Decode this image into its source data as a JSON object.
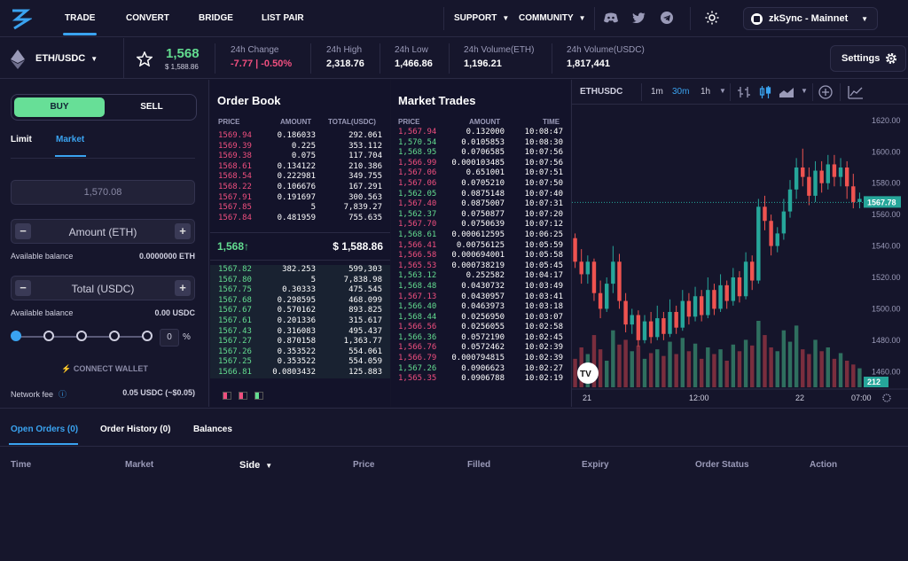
{
  "nav": {
    "items": [
      "TRADE",
      "CONVERT",
      "BRIDGE",
      "LIST PAIR"
    ],
    "support": "SUPPORT",
    "community": "COMMUNITY",
    "network": "zkSync - Mainnet"
  },
  "icons": {
    "discord": "discord-icon",
    "twitter": "twitter-icon",
    "telegram": "telegram-icon",
    "theme": "sun-icon"
  },
  "market": {
    "pair": "ETH/USDC",
    "price": "1,568",
    "price_usd": "$ 1,588.86",
    "stats": [
      {
        "label": "24h Change",
        "value": "-7.77 | -0.50%"
      },
      {
        "label": "24h High",
        "value": "2,318.76"
      },
      {
        "label": "24h Low",
        "value": "1,466.86"
      },
      {
        "label": "24h Volume(ETH)",
        "value": "1,196.21"
      },
      {
        "label": "24h Volume(USDC)",
        "value": "1,817,441"
      }
    ],
    "settings": "Settings"
  },
  "order_form": {
    "buy": "BUY",
    "sell": "SELL",
    "tabs": [
      "Limit",
      "Market"
    ],
    "price_placeholder": "1,570.08",
    "amount_label": "Amount (ETH)",
    "total_label": "Total (USDC)",
    "available_label": "Available balance",
    "available_eth": "0.0000000 ETH",
    "available_usdc": "0.00 USDC",
    "pct": "0",
    "pct_sign": "%",
    "connect": "CONNECT WALLET",
    "network_fee_label": "Network fee",
    "network_fee": "0.05 USDC (~$0.05)"
  },
  "order_book": {
    "title": "Order Book",
    "headers": [
      "PRICE",
      "AMOUNT",
      "TOTAL(USDC)"
    ],
    "asks": [
      [
        "1569.94",
        "0.186033",
        "292.061"
      ],
      [
        "1569.39",
        "0.225",
        "353.112"
      ],
      [
        "1569.38",
        "0.075",
        "117.704"
      ],
      [
        "1568.61",
        "0.134122",
        "210.386"
      ],
      [
        "1568.54",
        "0.222981",
        "349.755"
      ],
      [
        "1568.22",
        "0.106676",
        "167.291"
      ],
      [
        "1567.91",
        "0.191697",
        "300.563"
      ],
      [
        "1567.85",
        "5",
        "7,839.27"
      ],
      [
        "1567.84",
        "0.481959",
        "755.635"
      ]
    ],
    "mid": "1,568↑",
    "mid_usd": "$ 1,588.86",
    "bids": [
      [
        "1567.82",
        "382.253",
        "599,303"
      ],
      [
        "1567.80",
        "5",
        "7,838.98"
      ],
      [
        "1567.75",
        "0.30333",
        "475.545"
      ],
      [
        "1567.68",
        "0.298595",
        "468.099"
      ],
      [
        "1567.67",
        "0.570162",
        "893.825"
      ],
      [
        "1567.61",
        "0.201336",
        "315.617"
      ],
      [
        "1567.43",
        "0.316083",
        "495.437"
      ],
      [
        "1567.27",
        "0.870158",
        "1,363.77"
      ],
      [
        "1567.26",
        "0.353522",
        "554.061"
      ],
      [
        "1567.25",
        "0.353522",
        "554.059"
      ],
      [
        "1566.81",
        "0.0803432",
        "125.883"
      ]
    ]
  },
  "market_trades": {
    "title": "Market Trades",
    "headers": [
      "PRICE",
      "AMOUNT",
      "TIME"
    ],
    "rows": [
      [
        "1,567.94",
        "0.132000",
        "10:08:47",
        "red"
      ],
      [
        "1,570.54",
        "0.0105853",
        "10:08:30",
        "green"
      ],
      [
        "1,568.95",
        "0.0706585",
        "10:07:56",
        "green"
      ],
      [
        "1,566.99",
        "0.000103485",
        "10:07:56",
        "red"
      ],
      [
        "1,567.06",
        "0.651001",
        "10:07:51",
        "red"
      ],
      [
        "1,567.06",
        "0.0705210",
        "10:07:50",
        "red"
      ],
      [
        "1,562.05",
        "0.0875148",
        "10:07:40",
        "green"
      ],
      [
        "1,567.40",
        "0.0875007",
        "10:07:31",
        "red"
      ],
      [
        "1,562.37",
        "0.0750877",
        "10:07:20",
        "green"
      ],
      [
        "1,567.70",
        "0.0750639",
        "10:07:12",
        "red"
      ],
      [
        "1,568.61",
        "0.000612595",
        "10:06:25",
        "green"
      ],
      [
        "1,566.41",
        "0.00756125",
        "10:05:59",
        "red"
      ],
      [
        "1,566.58",
        "0.000694001",
        "10:05:58",
        "red"
      ],
      [
        "1,565.53",
        "0.000738219",
        "10:05:45",
        "red"
      ],
      [
        "1,563.12",
        "0.252582",
        "10:04:17",
        "green"
      ],
      [
        "1,568.48",
        "0.0430732",
        "10:03:49",
        "green"
      ],
      [
        "1,567.13",
        "0.0430957",
        "10:03:41",
        "red"
      ],
      [
        "1,566.40",
        "0.0463973",
        "10:03:18",
        "green"
      ],
      [
        "1,568.44",
        "0.0256950",
        "10:03:07",
        "green"
      ],
      [
        "1,566.56",
        "0.0256055",
        "10:02:58",
        "red"
      ],
      [
        "1,566.36",
        "0.0572190",
        "10:02:45",
        "green"
      ],
      [
        "1,566.76",
        "0.0572462",
        "10:02:39",
        "red"
      ],
      [
        "1,566.79",
        "0.000794815",
        "10:02:39",
        "red"
      ],
      [
        "1,567.26",
        "0.0906623",
        "10:02:27",
        "green"
      ],
      [
        "1,565.35",
        "0.0906788",
        "10:02:19",
        "red"
      ]
    ]
  },
  "chart_toolbar": {
    "symbol": "ETHUSDC",
    "intervals": [
      "1m",
      "30m",
      "1h"
    ]
  },
  "chart_data": {
    "type": "candlestick",
    "ylim": [
      1450,
      1625
    ],
    "yticks": [
      "1620.00",
      "1600.00",
      "1580.00",
      "1560.00",
      "1540.00",
      "1520.00",
      "1500.00",
      "1480.00",
      "1460.00"
    ],
    "xticks": [
      "21",
      "12:00",
      "22",
      "07:00"
    ],
    "last_price": "1567.78",
    "volume_label": "212",
    "candles": [
      [
        1545,
        1530,
        1548,
        1526
      ],
      [
        1530,
        1522,
        1538,
        1516
      ],
      [
        1522,
        1530,
        1534,
        1516
      ],
      [
        1530,
        1510,
        1532,
        1505
      ],
      [
        1510,
        1500,
        1518,
        1494
      ],
      [
        1500,
        1516,
        1520,
        1498
      ],
      [
        1516,
        1530,
        1540,
        1510
      ],
      [
        1530,
        1505,
        1535,
        1500
      ],
      [
        1505,
        1490,
        1510,
        1485
      ],
      [
        1490,
        1496,
        1500,
        1484
      ],
      [
        1496,
        1480,
        1499,
        1476
      ],
      [
        1480,
        1492,
        1496,
        1478
      ],
      [
        1492,
        1482,
        1498,
        1478
      ],
      [
        1482,
        1494,
        1502,
        1480
      ],
      [
        1494,
        1484,
        1498,
        1480
      ],
      [
        1484,
        1498,
        1506,
        1482
      ],
      [
        1498,
        1488,
        1502,
        1484
      ],
      [
        1488,
        1505,
        1512,
        1486
      ],
      [
        1505,
        1495,
        1510,
        1490
      ],
      [
        1495,
        1508,
        1514,
        1492
      ],
      [
        1508,
        1496,
        1512,
        1492
      ],
      [
        1496,
        1512,
        1520,
        1494
      ],
      [
        1512,
        1500,
        1516,
        1496
      ],
      [
        1500,
        1515,
        1522,
        1498
      ],
      [
        1515,
        1505,
        1518,
        1500
      ],
      [
        1505,
        1520,
        1526,
        1502
      ],
      [
        1520,
        1508,
        1524,
        1504
      ],
      [
        1508,
        1530,
        1536,
        1506
      ],
      [
        1530,
        1518,
        1534,
        1512
      ],
      [
        1518,
        1565,
        1570,
        1516
      ],
      [
        1565,
        1556,
        1572,
        1550
      ],
      [
        1556,
        1540,
        1560,
        1534
      ],
      [
        1540,
        1548,
        1552,
        1536
      ],
      [
        1548,
        1562,
        1570,
        1544
      ],
      [
        1562,
        1576,
        1582,
        1558
      ],
      [
        1576,
        1590,
        1596,
        1570
      ],
      [
        1590,
        1584,
        1602,
        1578
      ],
      [
        1584,
        1572,
        1590,
        1566
      ],
      [
        1572,
        1588,
        1594,
        1568
      ],
      [
        1588,
        1580,
        1594,
        1574
      ],
      [
        1580,
        1592,
        1598,
        1576
      ],
      [
        1592,
        1584,
        1598,
        1578
      ],
      [
        1584,
        1590,
        1596,
        1578
      ],
      [
        1590,
        1578,
        1594,
        1570
      ],
      [
        1578,
        1568,
        1586,
        1564
      ],
      [
        1568,
        1570,
        1574,
        1564
      ]
    ],
    "volumes": [
      30,
      42,
      35,
      55,
      40,
      28,
      60,
      45,
      50,
      38,
      44,
      30,
      36,
      40,
      33,
      48,
      35,
      52,
      38,
      46,
      30,
      42,
      35,
      40,
      28,
      45,
      38,
      50,
      44,
      70,
      55,
      42,
      38,
      60,
      48,
      65,
      40,
      35,
      50,
      38,
      42,
      30,
      36,
      28,
      24,
      20
    ]
  },
  "bottom": {
    "tabs": [
      "Open Orders (0)",
      "Order History (0)",
      "Balances"
    ],
    "columns": [
      "Time",
      "Market",
      "Side",
      "Price",
      "Filled",
      "Expiry",
      "Order Status",
      "Action"
    ]
  }
}
